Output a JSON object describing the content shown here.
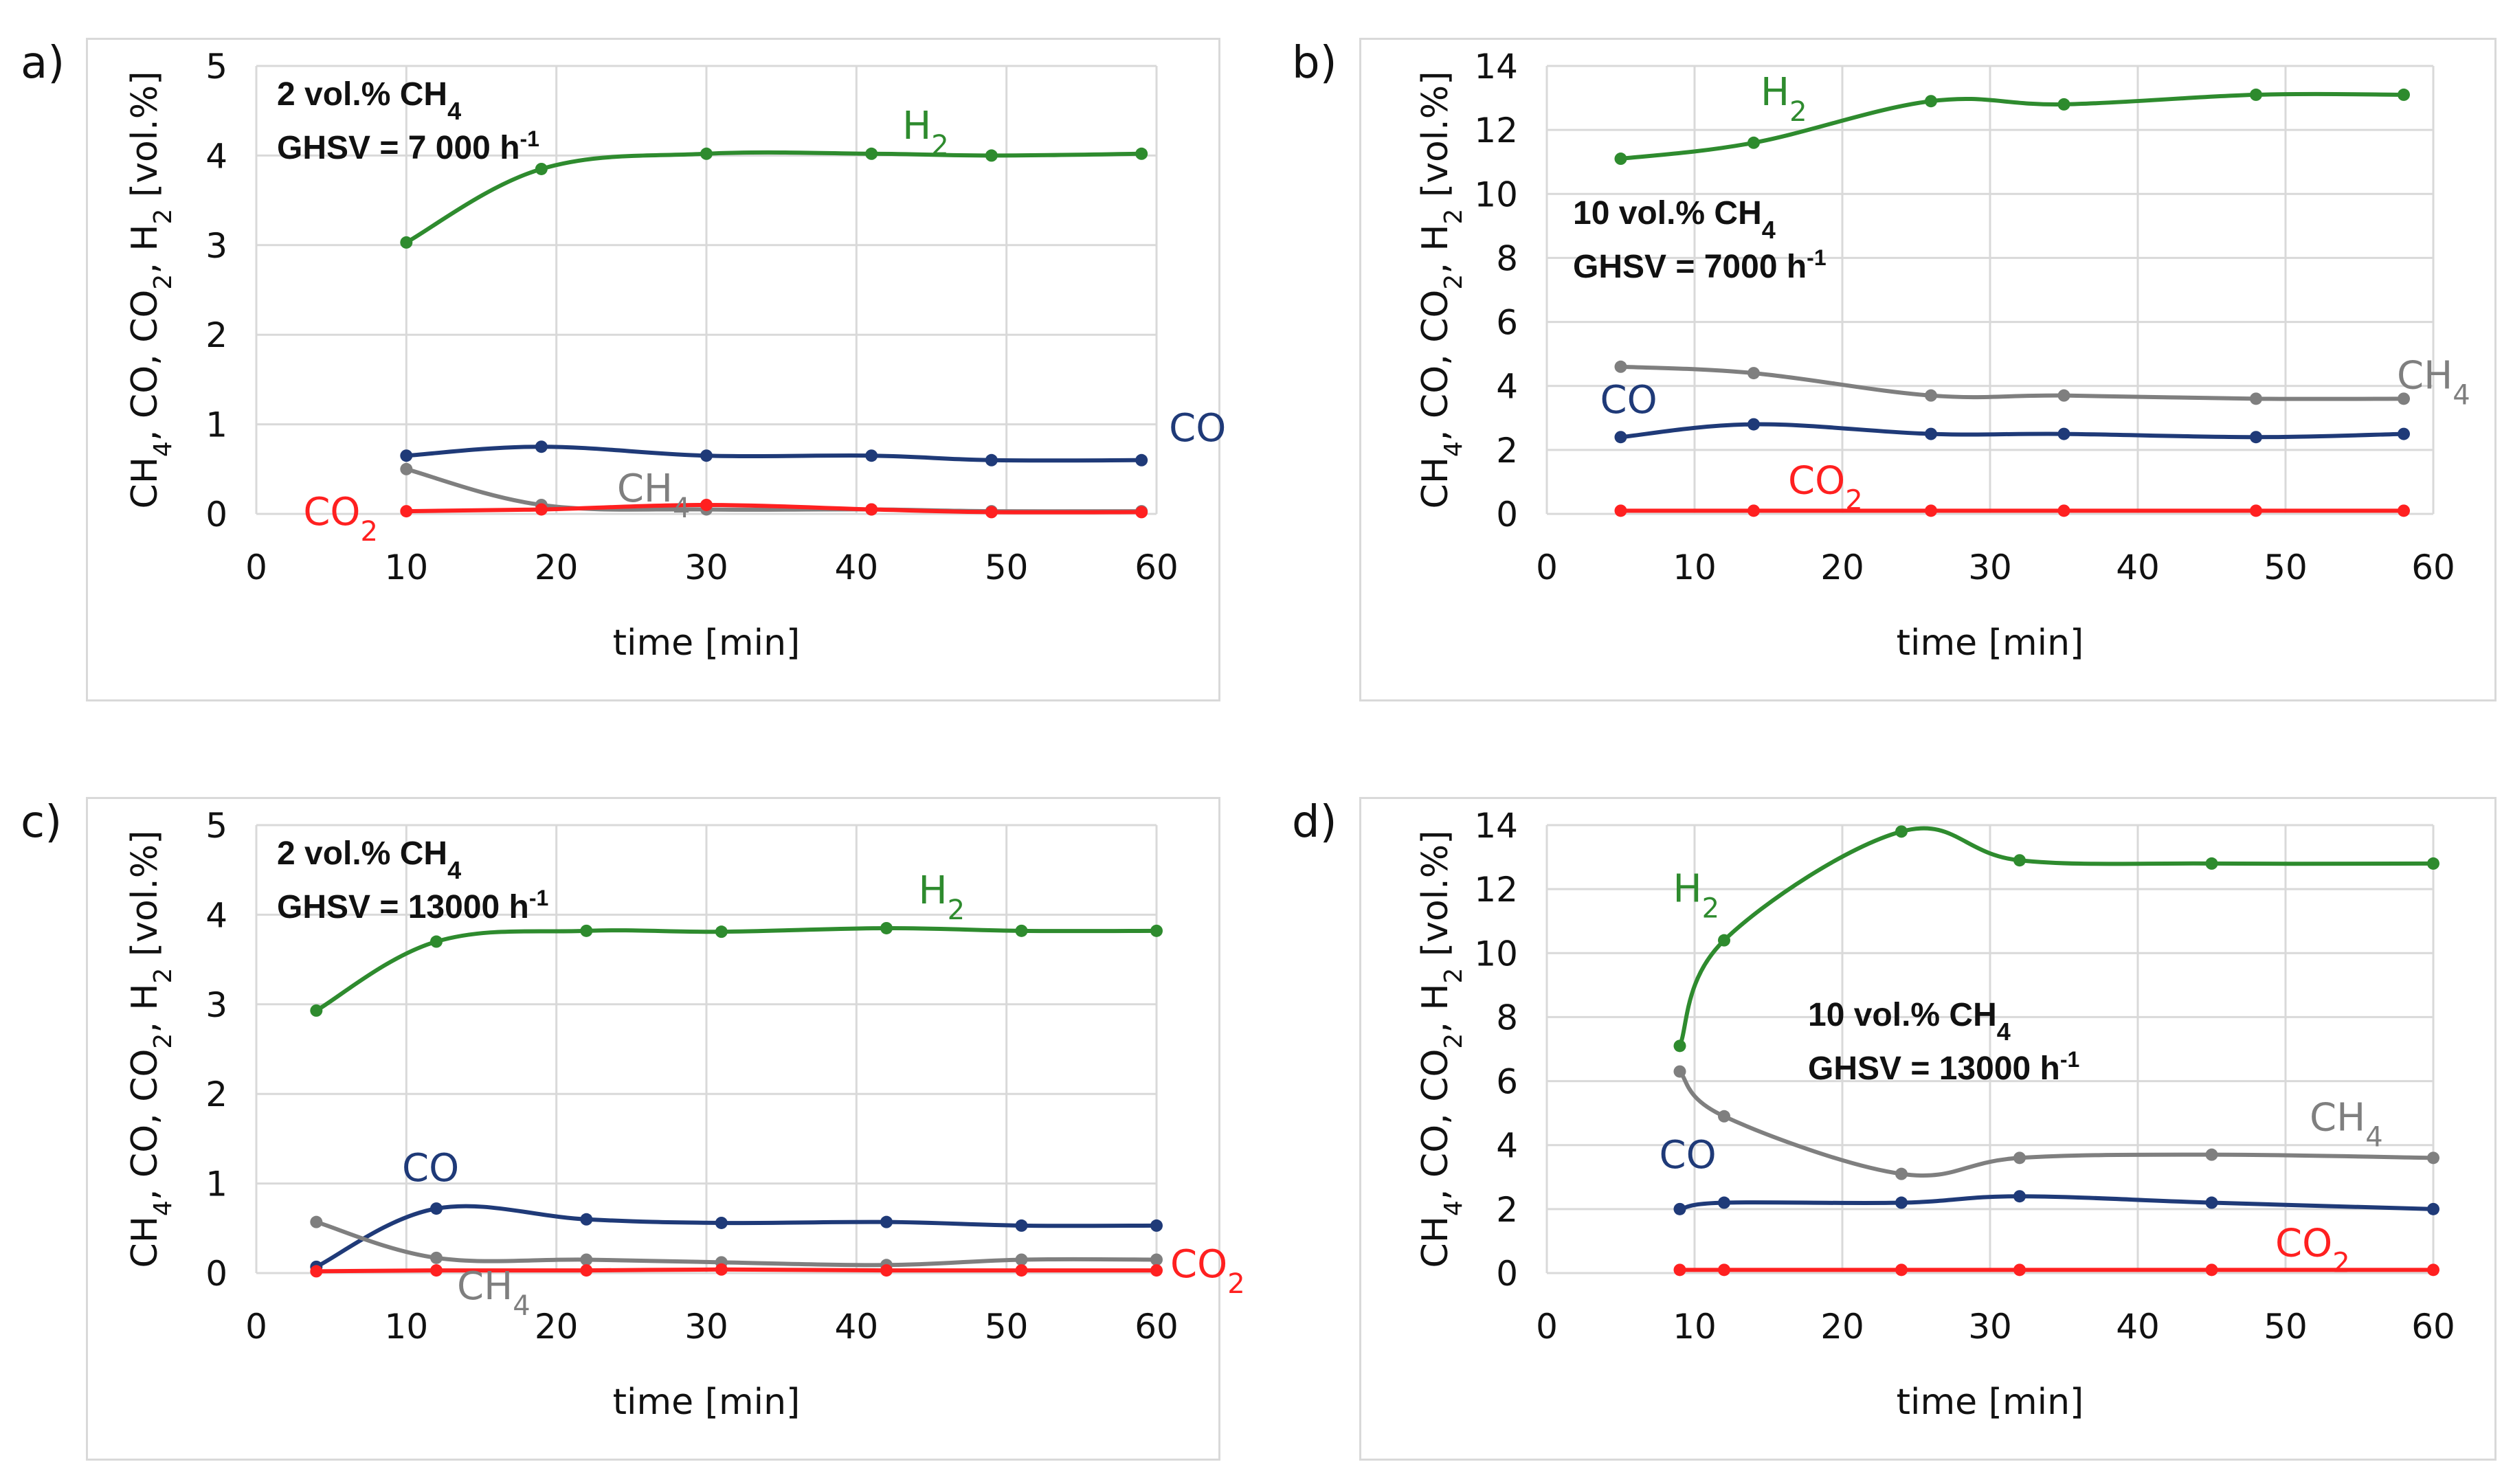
{
  "colors": {
    "H2": "#2e8b2e",
    "CO": "#1f3a78",
    "CH4": "#7f7f7f",
    "CO2": "#ff2020",
    "grid": "#d9d9d9",
    "text": "#111111"
  },
  "chart_data": [
    {
      "id": "a",
      "panel_label": "a)",
      "type": "line",
      "xlabel": "time [min]",
      "ylabel": "CH4, CO, CO2, H2 [vol.%]",
      "xlim": [
        0,
        60
      ],
      "ylim": [
        0,
        5
      ],
      "xticks": [
        "0",
        "10",
        "20",
        "30",
        "40",
        "50",
        "60"
      ],
      "yticks": [
        "0",
        "1",
        "2",
        "3",
        "4",
        "5"
      ],
      "annotation": [
        "2 vol.% CH4",
        "GHSV = 7 000 h-1"
      ],
      "series": [
        {
          "name": "H2",
          "label": "H2",
          "x": [
            10,
            19,
            30,
            41,
            49,
            59
          ],
          "y": [
            3.03,
            3.85,
            4.02,
            4.02,
            4.0,
            4.02
          ]
        },
        {
          "name": "CO",
          "label": "CO",
          "x": [
            10,
            19,
            30,
            41,
            49,
            59
          ],
          "y": [
            0.65,
            0.75,
            0.65,
            0.65,
            0.6,
            0.6
          ]
        },
        {
          "name": "CH4",
          "label": "CH4",
          "x": [
            10,
            19,
            30,
            41,
            49,
            59
          ],
          "y": [
            0.5,
            0.1,
            0.05,
            0.05,
            0.03,
            0.03
          ]
        },
        {
          "name": "CO2",
          "label": "CO2",
          "x": [
            10,
            19,
            30,
            41,
            49,
            59
          ],
          "y": [
            0.03,
            0.05,
            0.1,
            0.05,
            0.02,
            0.02
          ]
        }
      ]
    },
    {
      "id": "b",
      "panel_label": "b)",
      "type": "line",
      "xlabel": "time [min]",
      "ylabel": "CH4, CO, CO2, H2 [vol.%]",
      "xlim": [
        0,
        60
      ],
      "ylim": [
        0,
        14
      ],
      "xticks": [
        "0",
        "10",
        "20",
        "30",
        "40",
        "50",
        "60"
      ],
      "yticks": [
        "0",
        "2",
        "4",
        "6",
        "8",
        "10",
        "12",
        "14"
      ],
      "annotation": [
        "10 vol.% CH4",
        "GHSV = 7000 h-1"
      ],
      "series": [
        {
          "name": "H2",
          "label": "H2",
          "x": [
            5,
            14,
            26,
            35,
            48,
            58
          ],
          "y": [
            11.1,
            11.6,
            12.9,
            12.8,
            13.1,
            13.1
          ]
        },
        {
          "name": "CH4",
          "label": "CH4",
          "x": [
            5,
            14,
            26,
            35,
            48,
            58
          ],
          "y": [
            4.6,
            4.4,
            3.7,
            3.7,
            3.6,
            3.6
          ]
        },
        {
          "name": "CO",
          "label": "CO",
          "x": [
            5,
            14,
            26,
            35,
            48,
            58
          ],
          "y": [
            2.4,
            2.8,
            2.5,
            2.5,
            2.4,
            2.5
          ]
        },
        {
          "name": "CO2",
          "label": "CO2",
          "x": [
            5,
            14,
            26,
            35,
            48,
            58
          ],
          "y": [
            0.1,
            0.1,
            0.1,
            0.1,
            0.1,
            0.1
          ]
        }
      ]
    },
    {
      "id": "c",
      "panel_label": "c)",
      "type": "line",
      "xlabel": "time [min]",
      "ylabel": "CH4, CO, CO2, H2 [vol.%]",
      "xlim": [
        0,
        60
      ],
      "ylim": [
        0,
        5
      ],
      "xticks": [
        "0",
        "10",
        "20",
        "30",
        "40",
        "50",
        "60"
      ],
      "yticks": [
        "0",
        "1",
        "2",
        "3",
        "4",
        "5"
      ],
      "annotation": [
        "2 vol.% CH4",
        "GHSV = 13000 h-1"
      ],
      "series": [
        {
          "name": "H2",
          "label": "H2",
          "x": [
            4,
            12,
            22,
            31,
            42,
            51,
            60
          ],
          "y": [
            2.93,
            3.7,
            3.82,
            3.81,
            3.85,
            3.82,
            3.82
          ]
        },
        {
          "name": "CO",
          "label": "CO",
          "x": [
            4,
            12,
            22,
            31,
            42,
            51,
            60
          ],
          "y": [
            0.07,
            0.72,
            0.6,
            0.56,
            0.57,
            0.53,
            0.53
          ]
        },
        {
          "name": "CH4",
          "label": "CH4",
          "x": [
            4,
            12,
            22,
            31,
            42,
            51,
            60
          ],
          "y": [
            0.57,
            0.17,
            0.15,
            0.12,
            0.09,
            0.15,
            0.15
          ]
        },
        {
          "name": "CO2",
          "label": "CO2",
          "x": [
            4,
            12,
            22,
            31,
            42,
            51,
            60
          ],
          "y": [
            0.02,
            0.03,
            0.03,
            0.04,
            0.03,
            0.03,
            0.03
          ]
        }
      ]
    },
    {
      "id": "d",
      "panel_label": "d)",
      "type": "line",
      "xlabel": "time [min]",
      "ylabel": "CH4, CO, CO2, H2 [vol.%]",
      "xlim": [
        0,
        60
      ],
      "ylim": [
        0,
        14
      ],
      "xticks": [
        "0",
        "10",
        "20",
        "30",
        "40",
        "50",
        "60"
      ],
      "yticks": [
        "0",
        "2",
        "4",
        "6",
        "8",
        "10",
        "12",
        "14"
      ],
      "annotation": [
        "10 vol.% CH4",
        "GHSV = 13000 h-1"
      ],
      "series": [
        {
          "name": "H2",
          "label": "H2",
          "x": [
            9,
            12,
            24,
            32,
            45,
            60
          ],
          "y": [
            7.1,
            10.4,
            13.8,
            12.9,
            12.8,
            12.8
          ]
        },
        {
          "name": "CH4",
          "label": "CH4",
          "x": [
            9,
            12,
            24,
            32,
            45,
            60
          ],
          "y": [
            6.3,
            4.9,
            3.1,
            3.6,
            3.7,
            3.6
          ]
        },
        {
          "name": "CO",
          "label": "CO",
          "x": [
            9,
            12,
            24,
            32,
            45,
            60
          ],
          "y": [
            2.0,
            2.2,
            2.2,
            2.4,
            2.2,
            2.0
          ]
        },
        {
          "name": "CO2",
          "label": "CO2",
          "x": [
            9,
            12,
            24,
            32,
            45,
            60
          ],
          "y": [
            0.1,
            0.1,
            0.1,
            0.1,
            0.1,
            0.1
          ]
        }
      ]
    }
  ]
}
